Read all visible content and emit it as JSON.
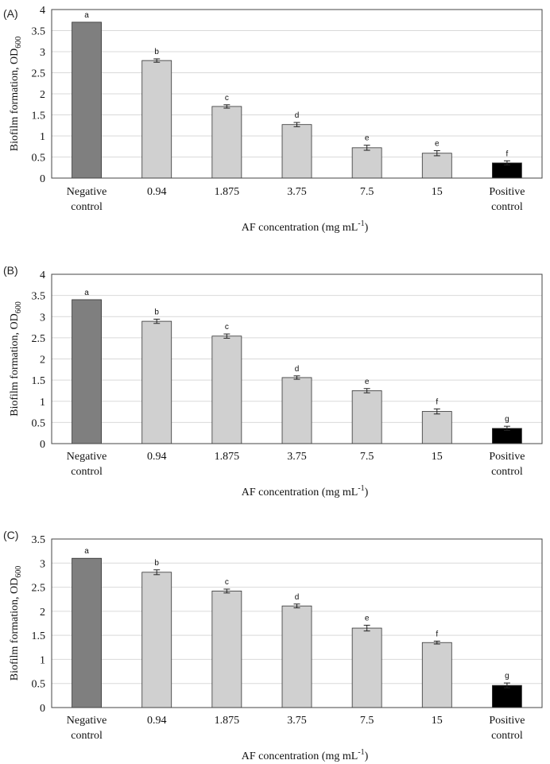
{
  "chart_data": [
    {
      "type": "bar",
      "panel": "(A)",
      "categories": [
        [
          "Negative",
          "control"
        ],
        [
          "0.94"
        ],
        [
          "1.875"
        ],
        [
          "3.75"
        ],
        [
          "7.5"
        ],
        [
          "15"
        ],
        [
          "Positive",
          "control"
        ]
      ],
      "values": [
        3.7,
        2.79,
        1.7,
        1.27,
        0.72,
        0.59,
        0.36
      ],
      "errors": [
        0,
        0.04,
        0.04,
        0.05,
        0.06,
        0.06,
        0.05
      ],
      "letters": [
        "a",
        "b",
        "c",
        "d",
        "e",
        "e",
        "f"
      ],
      "ylim": [
        0,
        4
      ],
      "yticks": [
        "0",
        "0.5",
        "1",
        "1.5",
        "2",
        "2.5",
        "3",
        "3.5",
        "4"
      ],
      "ylabel": "Biofilm formation, OD",
      "ylabel_sub": "600",
      "xlabel": "AF concentration (mg mL",
      "xlabel_sup": "-1",
      "xlabel_end": ")",
      "bar_colors": [
        "#7f7f7f",
        "#d0d0d0",
        "#d0d0d0",
        "#d0d0d0",
        "#d0d0d0",
        "#d0d0d0",
        "#000000"
      ]
    },
    {
      "type": "bar",
      "panel": "(B)",
      "categories": [
        [
          "Negative",
          "control"
        ],
        [
          "0.94"
        ],
        [
          "1.875"
        ],
        [
          "3.75"
        ],
        [
          "7.5"
        ],
        [
          "15"
        ],
        [
          "Positive",
          "control"
        ]
      ],
      "values": [
        3.4,
        2.89,
        2.54,
        1.56,
        1.25,
        0.76,
        0.36
      ],
      "errors": [
        0,
        0.05,
        0.05,
        0.04,
        0.05,
        0.06,
        0.05
      ],
      "letters": [
        "a",
        "b",
        "c",
        "d",
        "e",
        "f",
        "g"
      ],
      "ylim": [
        0,
        4
      ],
      "yticks": [
        "0",
        "0.5",
        "1",
        "1.5",
        "2",
        "2.5",
        "3",
        "3.5",
        "4"
      ],
      "ylabel": "Biofilm formation, OD",
      "ylabel_sub": "600",
      "xlabel": "AF concentration (mg mL",
      "xlabel_sup": "-1",
      "xlabel_end": ")",
      "bar_colors": [
        "#7f7f7f",
        "#d0d0d0",
        "#d0d0d0",
        "#d0d0d0",
        "#d0d0d0",
        "#d0d0d0",
        "#000000"
      ]
    },
    {
      "type": "bar",
      "panel": "(C)",
      "categories": [
        [
          "Negative",
          "control"
        ],
        [
          "0.94"
        ],
        [
          "1.875"
        ],
        [
          "3.75"
        ],
        [
          "7.5"
        ],
        [
          "15"
        ],
        [
          "Positive",
          "control"
        ]
      ],
      "values": [
        3.1,
        2.81,
        2.42,
        2.11,
        1.65,
        1.35,
        0.46
      ],
      "errors": [
        0,
        0.05,
        0.04,
        0.04,
        0.06,
        0.03,
        0.05
      ],
      "letters": [
        "a",
        "b",
        "c",
        "d",
        "e",
        "f",
        "g"
      ],
      "ylim": [
        0,
        3.5
      ],
      "yticks": [
        "0",
        "0.5",
        "1",
        "1.5",
        "2",
        "2.5",
        "3",
        "3.5"
      ],
      "ylabel": "Biofilm formation, OD",
      "ylabel_sub": "600",
      "xlabel": "AF concentration (mg mL",
      "xlabel_sup": "-1",
      "xlabel_end": ")",
      "bar_colors": [
        "#7f7f7f",
        "#d0d0d0",
        "#d0d0d0",
        "#d0d0d0",
        "#d0d0d0",
        "#d0d0d0",
        "#000000"
      ]
    }
  ]
}
